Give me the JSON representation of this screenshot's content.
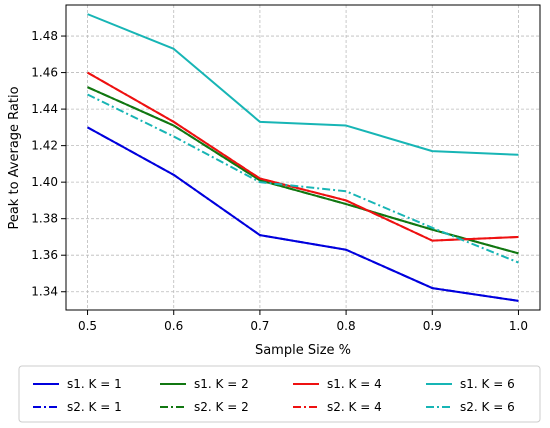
{
  "chart_data": {
    "type": "line",
    "title": "",
    "xlabel": "Sample Size %",
    "ylabel": "Peak to Average Ratio",
    "x": [
      0.5,
      0.6,
      0.7,
      0.8,
      0.9,
      1.0
    ],
    "xticks": [
      "0.5",
      "0.6",
      "0.7",
      "0.8",
      "0.9",
      "1.0"
    ],
    "yticks": [
      "1.34",
      "1.36",
      "1.38",
      "1.40",
      "1.42",
      "1.44",
      "1.46",
      "1.48"
    ],
    "xlim": [
      0.475,
      1.025
    ],
    "ylim": [
      1.33,
      1.497
    ],
    "grid": true,
    "legend_position": "bottom",
    "series": [
      {
        "name": "s1. K = 1",
        "style": "solid",
        "color": "#0000dd",
        "values": [
          1.43,
          1.404,
          1.371,
          1.363,
          1.342,
          1.335
        ]
      },
      {
        "name": "s2. K = 1",
        "style": "dashdot",
        "color": "#0000dd",
        "values": [
          1.43,
          1.404,
          1.371,
          1.363,
          1.342,
          1.335
        ]
      },
      {
        "name": "s1. K = 2",
        "style": "solid",
        "color": "#117711",
        "values": [
          1.452,
          1.431,
          1.401,
          1.388,
          1.374,
          1.361
        ]
      },
      {
        "name": "s2. K = 2",
        "style": "dashdot",
        "color": "#117711",
        "values": [
          1.452,
          1.431,
          1.401,
          1.388,
          1.374,
          1.361
        ]
      },
      {
        "name": "s1. K = 4",
        "style": "solid",
        "color": "#ee1111",
        "values": [
          1.46,
          1.433,
          1.402,
          1.39,
          1.368,
          1.37
        ]
      },
      {
        "name": "s2. K = 4",
        "style": "dashdot",
        "color": "#ee1111",
        "values": [
          1.46,
          1.433,
          1.402,
          1.39,
          1.368,
          1.37
        ]
      },
      {
        "name": "s1. K = 6",
        "style": "solid",
        "color": "#17b5b5",
        "values": [
          1.492,
          1.473,
          1.433,
          1.431,
          1.417,
          1.415
        ]
      },
      {
        "name": "s2. K = 6",
        "style": "dashdot",
        "color": "#17b5b5",
        "values": [
          1.448,
          1.425,
          1.4,
          1.395,
          1.375,
          1.356
        ]
      }
    ]
  }
}
